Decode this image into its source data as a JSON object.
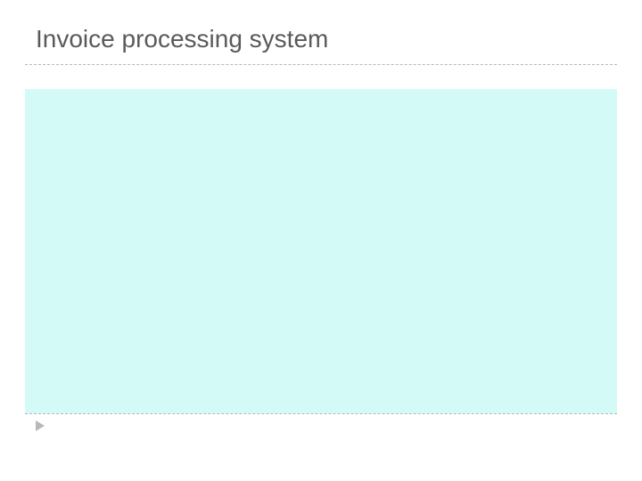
{
  "slide": {
    "title": "Invoice processing system",
    "background_color": "#ffffff",
    "title_color": "#5a5a5a",
    "title_fontsize": 28,
    "divider_color": "#b8b8b8",
    "content_bg_color": "#d4faf8",
    "footer_icon_color": "#b8b8b8"
  }
}
